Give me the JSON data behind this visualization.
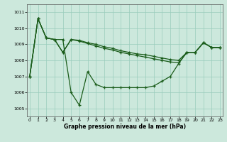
{
  "bg_color": "#cce8dc",
  "line_color": "#1a5c1a",
  "grid_color": "#99ccbb",
  "xlabel": "Graphe pression niveau de la mer (hPa)",
  "ylim": [
    1004.5,
    1011.5
  ],
  "xlim": [
    0,
    23
  ],
  "yticks": [
    1005,
    1006,
    1007,
    1008,
    1009,
    1010,
    1011
  ],
  "xticks": [
    0,
    1,
    2,
    3,
    4,
    5,
    6,
    7,
    8,
    9,
    10,
    11,
    12,
    13,
    14,
    15,
    16,
    17,
    18,
    19,
    20,
    21,
    22,
    23
  ],
  "series1": [
    1007.0,
    1010.6,
    1009.4,
    1009.3,
    1009.3,
    1006.0,
    1005.2,
    1007.3,
    1006.5,
    1006.3,
    1006.3,
    1006.3,
    1006.3,
    1006.3,
    1006.3,
    1006.4,
    1006.7,
    1007.0,
    1007.8,
    1008.5,
    1008.5,
    1009.1,
    1008.8,
    1008.8
  ],
  "series2": [
    1007.0,
    1010.6,
    1009.4,
    1009.3,
    1008.5,
    1009.3,
    1009.25,
    1009.1,
    1009.0,
    1008.85,
    1008.75,
    1008.6,
    1008.5,
    1008.4,
    1008.35,
    1008.25,
    1008.15,
    1008.05,
    1008.0,
    1008.5,
    1008.5,
    1009.1,
    1008.8,
    1008.8
  ],
  "series3": [
    1007.0,
    1010.6,
    1009.4,
    1009.3,
    1008.5,
    1009.3,
    1009.2,
    1009.05,
    1008.9,
    1008.75,
    1008.65,
    1008.5,
    1008.4,
    1008.3,
    1008.2,
    1008.1,
    1008.0,
    1007.9,
    1007.85,
    1008.5,
    1008.5,
    1009.1,
    1008.8,
    1008.8
  ]
}
